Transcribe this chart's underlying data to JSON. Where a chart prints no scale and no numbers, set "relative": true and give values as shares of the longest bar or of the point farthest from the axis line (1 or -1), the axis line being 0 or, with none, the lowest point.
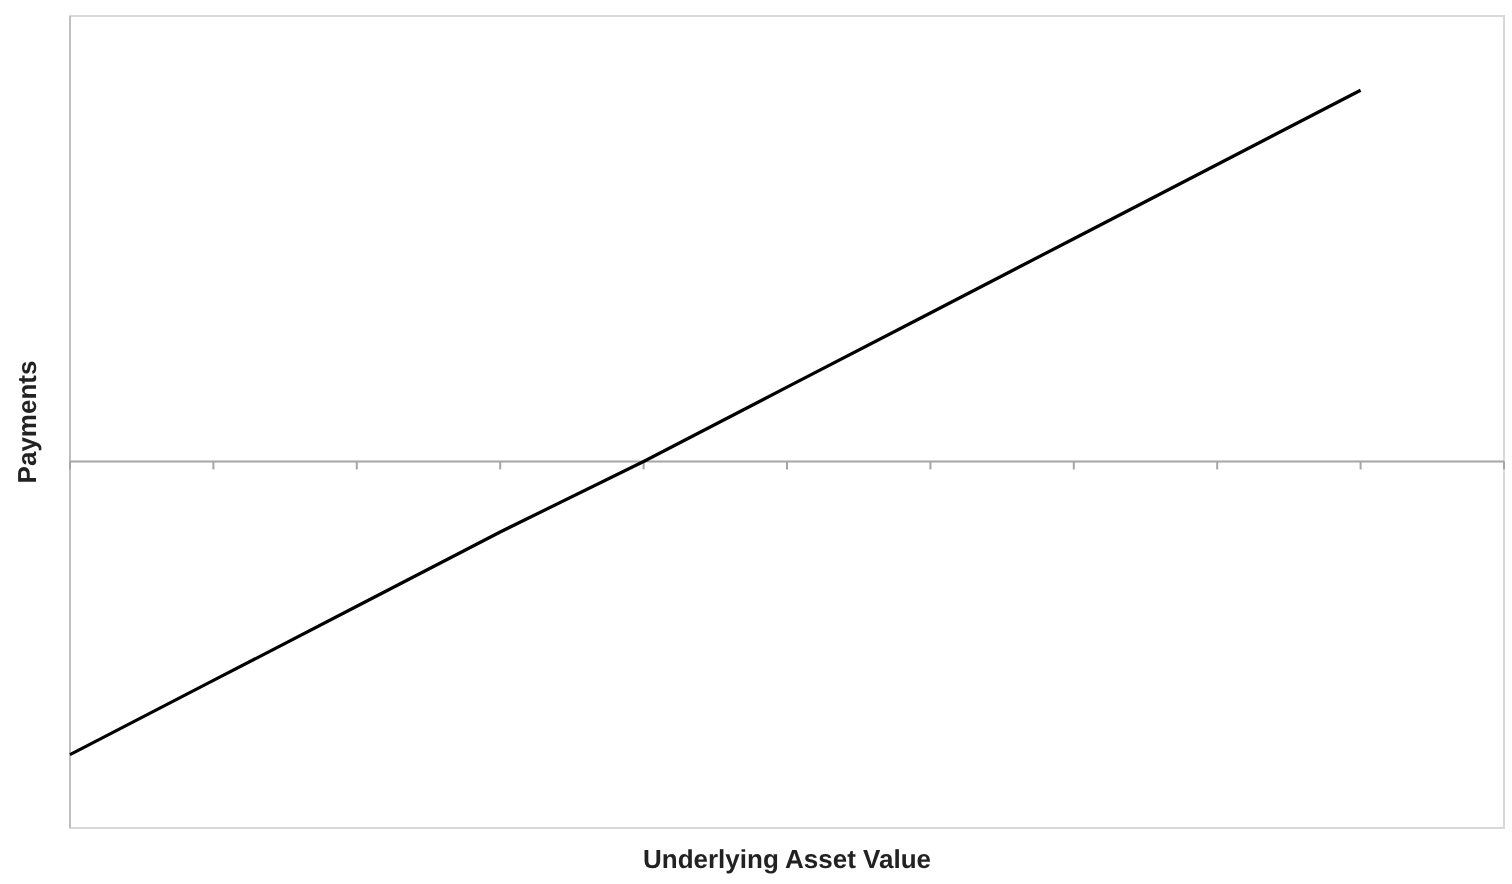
{
  "chart_data": {
    "type": "line",
    "xlabel": "Underlying Asset Value",
    "ylabel": "Payments",
    "relative": true,
    "categories": [
      null,
      null,
      null,
      null,
      null,
      null,
      null,
      null,
      null,
      null,
      null
    ],
    "series": [
      {
        "color": "#000000",
        "values": [
          -0.79,
          -0.59,
          -0.39,
          -0.19,
          0.0,
          0.2,
          0.4,
          0.6,
          0.8,
          1.0,
          null
        ]
      }
    ],
    "grid": false,
    "line_style": "solid"
  }
}
